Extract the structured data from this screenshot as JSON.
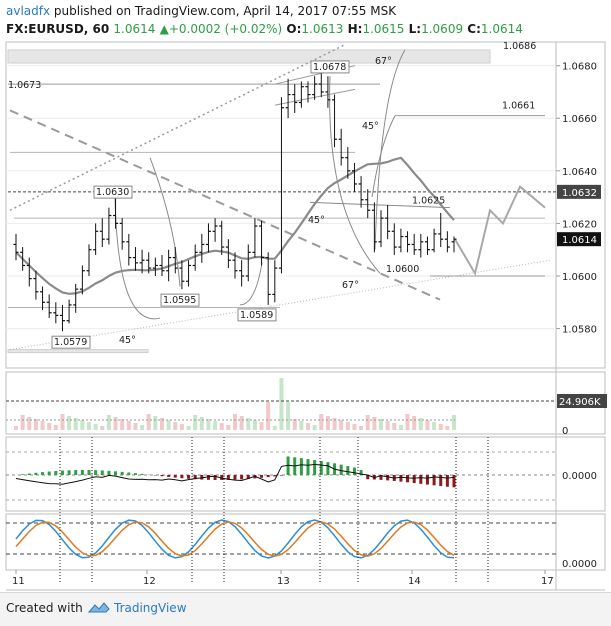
{
  "header": {
    "author": "avladfx",
    "published_text": "published on TradingView.com, April 14, 2017 07:55 MSK",
    "symbol": "FX:EURUSD, 60",
    "last": "1.0614",
    "change": "+0.0002 (+0.02%)",
    "o_label": "O:",
    "o_value": "1.0613",
    "h_label": "H:",
    "h_value": "1.0615",
    "l_label": "L:",
    "l_value": "1.0609",
    "c_label": "C:",
    "c_value": "1.0614"
  },
  "footer": {
    "created_with": "Created with",
    "brand": "TradingView"
  },
  "colors": {
    "candle": "#111111",
    "ma": "#8a8a8a",
    "hist_up": "#2e9e45",
    "hist_down": "#8b1a1a",
    "stoch_k": "#2b8ed6",
    "stoch_d": "#e07a20",
    "level": "#555555"
  },
  "chart_data": {
    "type": "candlestick",
    "symbol": "FX:EURUSD",
    "interval": "60",
    "x_ticks": [
      "11",
      "12",
      "13",
      "14",
      "17"
    ],
    "y_ticks": [
      1.058,
      1.06,
      1.062,
      1.064,
      1.066,
      1.068
    ],
    "y_tick_labels": [
      "1.0580",
      "1.0600",
      "1.0620",
      "1.0640",
      "1.0660",
      "1.0680"
    ],
    "ylim": [
      1.0565,
      1.0689
    ],
    "current_price": "1.0614",
    "dotted_level": "1.0632",
    "candles": [
      [
        1.0612,
        1.0616,
        1.0606,
        1.0609
      ],
      [
        1.0609,
        1.0611,
        1.0602,
        1.0604
      ],
      [
        1.0604,
        1.0607,
        1.0596,
        1.0599
      ],
      [
        1.0599,
        1.0602,
        1.0591,
        1.0594
      ],
      [
        1.0594,
        1.0596,
        1.0587,
        1.059
      ],
      [
        1.059,
        1.0593,
        1.0584,
        1.0586
      ],
      [
        1.0586,
        1.059,
        1.0582,
        1.0585
      ],
      [
        1.0585,
        1.0589,
        1.0579,
        1.0583
      ],
      [
        1.0583,
        1.0591,
        1.0582,
        1.0589
      ],
      [
        1.0589,
        1.0597,
        1.0586,
        1.0595
      ],
      [
        1.0595,
        1.0604,
        1.0593,
        1.0602
      ],
      [
        1.0602,
        1.0612,
        1.06,
        1.061
      ],
      [
        1.061,
        1.062,
        1.0608,
        1.0617
      ],
      [
        1.0617,
        1.0622,
        1.0611,
        1.0614
      ],
      [
        1.0614,
        1.0626,
        1.0612,
        1.0623
      ],
      [
        1.0623,
        1.063,
        1.0618,
        1.062
      ],
      [
        1.062,
        1.0622,
        1.061,
        1.0613
      ],
      [
        1.0613,
        1.0616,
        1.0604,
        1.0607
      ],
      [
        1.0607,
        1.0611,
        1.0602,
        1.0605
      ],
      [
        1.0605,
        1.061,
        1.0601,
        1.0606
      ],
      [
        1.0606,
        1.0609,
        1.0601,
        1.0603
      ],
      [
        1.0603,
        1.0607,
        1.06,
        1.0604
      ],
      [
        1.0604,
        1.0608,
        1.06,
        1.0602
      ],
      [
        1.0602,
        1.061,
        1.0598,
        1.0607
      ],
      [
        1.0607,
        1.0611,
        1.0601,
        1.0603
      ],
      [
        1.0603,
        1.0606,
        1.0595,
        1.0598
      ],
      [
        1.0598,
        1.0606,
        1.0596,
        1.0604
      ],
      [
        1.0604,
        1.0612,
        1.0602,
        1.0609
      ],
      [
        1.0609,
        1.0616,
        1.0605,
        1.0612
      ],
      [
        1.0612,
        1.062,
        1.0609,
        1.0617
      ],
      [
        1.0617,
        1.0622,
        1.0613,
        1.0619
      ],
      [
        1.0619,
        1.0621,
        1.0608,
        1.0611
      ],
      [
        1.0611,
        1.0614,
        1.0603,
        1.0606
      ],
      [
        1.0606,
        1.0609,
        1.0599,
        1.0602
      ],
      [
        1.0602,
        1.0606,
        1.0596,
        1.06
      ],
      [
        1.06,
        1.0612,
        1.0598,
        1.0609
      ],
      [
        1.0609,
        1.0622,
        1.0607,
        1.0619
      ],
      [
        1.0619,
        1.0621,
        1.0604,
        1.0607
      ],
      [
        1.0607,
        1.0609,
        1.0589,
        1.0593
      ],
      [
        1.0593,
        1.0606,
        1.059,
        1.0603
      ],
      [
        1.0603,
        1.0668,
        1.0601,
        1.0664
      ],
      [
        1.0664,
        1.0675,
        1.066,
        1.0669
      ],
      [
        1.0669,
        1.0673,
        1.0662,
        1.0666
      ],
      [
        1.0666,
        1.0674,
        1.0664,
        1.0672
      ],
      [
        1.0672,
        1.0674,
        1.0666,
        1.0669
      ],
      [
        1.0669,
        1.0676,
        1.0667,
        1.0673
      ],
      [
        1.0673,
        1.0678,
        1.0668,
        1.067
      ],
      [
        1.067,
        1.0676,
        1.0664,
        1.0667
      ],
      [
        1.0667,
        1.0669,
        1.0649,
        1.0652
      ],
      [
        1.0652,
        1.0656,
        1.0642,
        1.0645
      ],
      [
        1.0645,
        1.0649,
        1.0637,
        1.064
      ],
      [
        1.064,
        1.0643,
        1.0632,
        1.0635
      ],
      [
        1.0635,
        1.0638,
        1.0626,
        1.0629
      ],
      [
        1.0629,
        1.0633,
        1.0622,
        1.0625
      ],
      [
        1.0625,
        1.0628,
        1.0609,
        1.0613
      ],
      [
        1.0613,
        1.0625,
        1.0611,
        1.0622
      ],
      [
        1.0622,
        1.0627,
        1.0614,
        1.0617
      ],
      [
        1.0617,
        1.062,
        1.0608,
        1.0611
      ],
      [
        1.0611,
        1.0618,
        1.0609,
        1.0615
      ],
      [
        1.0615,
        1.0617,
        1.0609,
        1.0612
      ],
      [
        1.0612,
        1.0616,
        1.0608,
        1.061
      ],
      [
        1.061,
        1.0616,
        1.0607,
        1.0613
      ],
      [
        1.0613,
        1.0615,
        1.0608,
        1.061
      ],
      [
        1.061,
        1.0618,
        1.0609,
        1.0616
      ],
      [
        1.0616,
        1.0624,
        1.0611,
        1.0614
      ],
      [
        1.0614,
        1.0617,
        1.0609,
        1.0611
      ],
      [
        1.0613,
        1.0615,
        1.0609,
        1.0614
      ]
    ],
    "annotations": [
      {
        "text": "1.0673",
        "price": 1.0673
      },
      {
        "text": "1.0678",
        "price": 1.0678
      },
      {
        "text": "1.0630",
        "price": 1.063
      },
      {
        "text": "1.0595",
        "price": 1.0595
      },
      {
        "text": "1.0589",
        "price": 1.0589
      },
      {
        "text": "1.0579",
        "price": 1.0579
      },
      {
        "text": "1.0661",
        "price": 1.0661
      },
      {
        "text": "1.0625",
        "price": 1.0625
      },
      {
        "text": "1.0600",
        "price": 1.06
      },
      {
        "text": "1.0686",
        "price": 1.0686
      }
    ],
    "angle_labels": [
      "67°",
      "45°",
      "45°",
      "45°",
      "67°"
    ],
    "volume": {
      "last_label": "24.906K",
      "zero_label": "0"
    },
    "macd": {
      "zero_label": "0.0000"
    },
    "stochastic": {
      "zero_label": "0.0000"
    }
  }
}
